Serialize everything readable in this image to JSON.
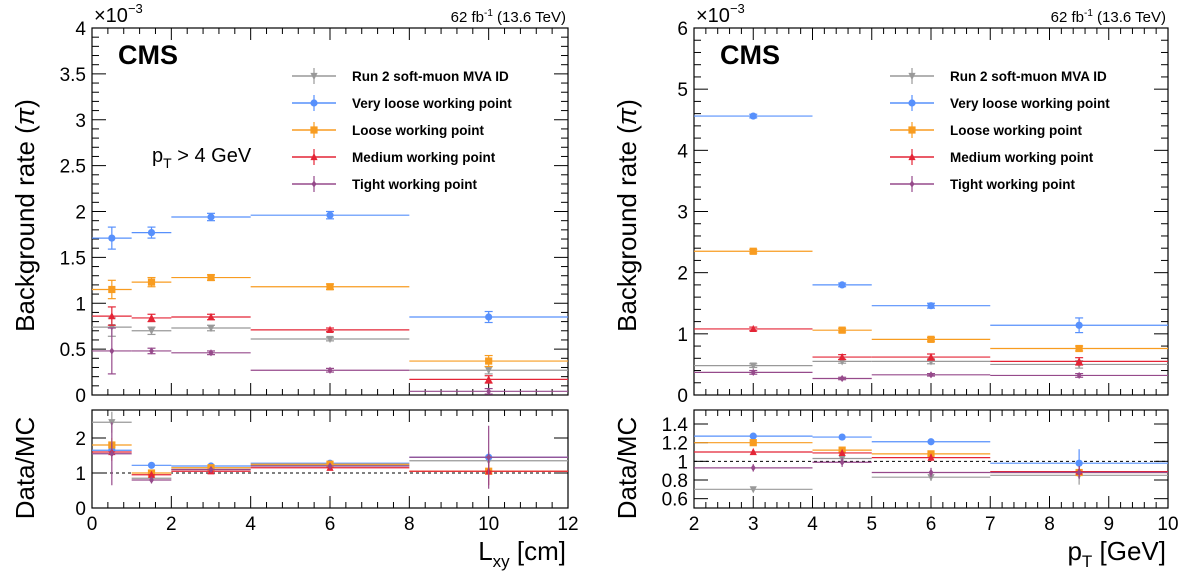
{
  "chart_data": [
    {
      "type": "scatter",
      "panel": "left",
      "lumi_label": {
        "value": "62 fb",
        "sup": "-1",
        "energy": " (13.6 TeV)"
      },
      "experiment_label": "CMS",
      "annotation": {
        "text": "p",
        "sub": "T",
        "rest": " > 4 GeV"
      },
      "ylabel": "Background rate (π)",
      "ylabel_parts": {
        "text": "Background rate (",
        "sym": "π",
        "close": ")"
      },
      "y_multiplier": {
        "base": "×10",
        "exp": "−3"
      },
      "xlabel": {
        "text": "L",
        "sub": "xy",
        "rest": " [cm]"
      },
      "ratio_ylabel": "Data/MC",
      "xlim": [
        0,
        12
      ],
      "ylim": [
        0,
        4
      ],
      "ratio_ylim": [
        0,
        2.8
      ],
      "x_ticks": [
        "0",
        "2",
        "4",
        "6",
        "8",
        "10",
        "12"
      ],
      "y_ticks": [
        "0",
        "0.5",
        "1",
        "1.5",
        "2",
        "2.5",
        "3",
        "3.5",
        "4"
      ],
      "ratio_y_ticks": [
        "0",
        "1",
        "2"
      ],
      "bins": [
        [
          0,
          1
        ],
        [
          1,
          2
        ],
        [
          2,
          4
        ],
        [
          4,
          8
        ],
        [
          8,
          12
        ]
      ],
      "series": [
        {
          "name": "Run 2 soft-muon MVA ID",
          "color": "#999999",
          "marker": "triangle-down",
          "values": [
            0.74,
            0.7,
            0.73,
            0.61,
            0.27
          ],
          "errors": [
            0.1,
            0.04,
            0.03,
            0.02,
            0.04
          ],
          "ratio": [
            2.45,
            0.85,
            1.1,
            1.22,
            1.35
          ],
          "ratio_errors": [
            0.3,
            0.08,
            0.05,
            0.05,
            0.25
          ]
        },
        {
          "name": "Very loose working point",
          "color": "#5790fc",
          "marker": "circle",
          "values": [
            1.71,
            1.77,
            1.94,
            1.96,
            0.85
          ],
          "errors": [
            0.12,
            0.06,
            0.04,
            0.04,
            0.06
          ],
          "ratio": [
            1.65,
            1.22,
            1.2,
            1.28,
            1.45
          ],
          "ratio_errors": [
            0.15,
            0.06,
            0.04,
            0.04,
            0.12
          ]
        },
        {
          "name": "Loose working point",
          "color": "#f89c20",
          "marker": "square",
          "values": [
            1.15,
            1.23,
            1.28,
            1.18,
            0.37
          ],
          "errors": [
            0.1,
            0.05,
            0.03,
            0.03,
            0.06
          ],
          "ratio": [
            1.8,
            1.0,
            1.15,
            1.25,
            1.05
          ],
          "ratio_errors": [
            0.2,
            0.06,
            0.04,
            0.04,
            0.2
          ]
        },
        {
          "name": "Medium working point",
          "color": "#e42536",
          "marker": "triangle-up",
          "values": [
            0.86,
            0.84,
            0.85,
            0.71,
            0.17
          ],
          "errors": [
            0.1,
            0.04,
            0.03,
            0.02,
            0.04
          ],
          "ratio": [
            1.6,
            0.95,
            1.05,
            1.15,
            1.05
          ],
          "ratio_errors": [
            0.25,
            0.07,
            0.05,
            0.05,
            0.4
          ]
        },
        {
          "name": "Tight working point",
          "color": "#964a8b",
          "marker": "diamond",
          "values": [
            0.48,
            0.48,
            0.46,
            0.27,
            0.04
          ],
          "errors": [
            0.25,
            0.03,
            0.02,
            0.02,
            0.03
          ],
          "ratio": [
            1.55,
            0.8,
            1.1,
            1.2,
            1.45
          ],
          "ratio_errors": [
            0.9,
            0.1,
            0.05,
            0.06,
            0.9
          ]
        }
      ]
    },
    {
      "type": "scatter",
      "panel": "right",
      "lumi_label": {
        "value": "62 fb",
        "sup": "-1",
        "energy": " (13.6 TeV)"
      },
      "experiment_label": "CMS",
      "ylabel": "Background rate (π)",
      "ylabel_parts": {
        "text": "Background rate (",
        "sym": "π",
        "close": ")"
      },
      "y_multiplier": {
        "base": "×10",
        "exp": "−3"
      },
      "xlabel": {
        "text": "p",
        "sub": "T",
        "rest": " [GeV]"
      },
      "ratio_ylabel": "Data/MC",
      "xlim": [
        2,
        10
      ],
      "ylim": [
        0,
        6
      ],
      "ratio_ylim": [
        0.5,
        1.55
      ],
      "x_ticks": [
        "2",
        "3",
        "4",
        "5",
        "6",
        "7",
        "8",
        "9",
        "10"
      ],
      "y_ticks": [
        "0",
        "1",
        "2",
        "3",
        "4",
        "5",
        "6"
      ],
      "ratio_y_ticks": [
        "0.6",
        "0.8",
        "1",
        "1.2",
        "1.4"
      ],
      "bins": [
        [
          2,
          4
        ],
        [
          4,
          5
        ],
        [
          5,
          7
        ],
        [
          7,
          10
        ]
      ],
      "series": [
        {
          "name": "Run 2 soft-muon MVA ID",
          "color": "#999999",
          "marker": "triangle-down",
          "values": [
            0.48,
            0.55,
            0.55,
            0.5
          ],
          "errors": [
            0.03,
            0.03,
            0.04,
            0.06
          ],
          "ratio": [
            0.7,
            1.03,
            0.83,
            0.85
          ],
          "ratio_errors": [
            0.01,
            0.04,
            0.04,
            0.1
          ]
        },
        {
          "name": "Very loose working point",
          "color": "#5790fc",
          "marker": "circle",
          "values": [
            4.56,
            1.8,
            1.46,
            1.14
          ],
          "errors": [
            0.03,
            0.03,
            0.04,
            0.12
          ],
          "ratio": [
            1.27,
            1.26,
            1.21,
            0.98
          ],
          "ratio_errors": [
            0.01,
            0.01,
            0.02,
            0.15
          ]
        },
        {
          "name": "Loose working point",
          "color": "#f89c20",
          "marker": "square",
          "values": [
            2.35,
            1.06,
            0.91,
            0.76
          ],
          "errors": [
            0.03,
            0.03,
            0.03,
            0.04
          ],
          "ratio": [
            1.2,
            1.12,
            1.08,
            0.88
          ],
          "ratio_errors": [
            0.01,
            0.02,
            0.02,
            0.04
          ]
        },
        {
          "name": "Medium working point",
          "color": "#e42536",
          "marker": "triangle-up",
          "values": [
            1.08,
            0.62,
            0.62,
            0.55
          ],
          "errors": [
            0.03,
            0.04,
            0.05,
            0.06
          ],
          "ratio": [
            1.1,
            1.09,
            1.04,
            0.89
          ],
          "ratio_errors": [
            0.02,
            0.03,
            0.04,
            0.06
          ]
        },
        {
          "name": "Tight working point",
          "color": "#964a8b",
          "marker": "diamond",
          "values": [
            0.37,
            0.27,
            0.33,
            0.32
          ],
          "errors": [
            0.03,
            0.02,
            0.02,
            0.03
          ],
          "ratio": [
            0.93,
            0.99,
            0.88,
            0.88
          ],
          "ratio_errors": [
            0.04,
            0.05,
            0.05,
            0.07
          ]
        }
      ]
    }
  ]
}
